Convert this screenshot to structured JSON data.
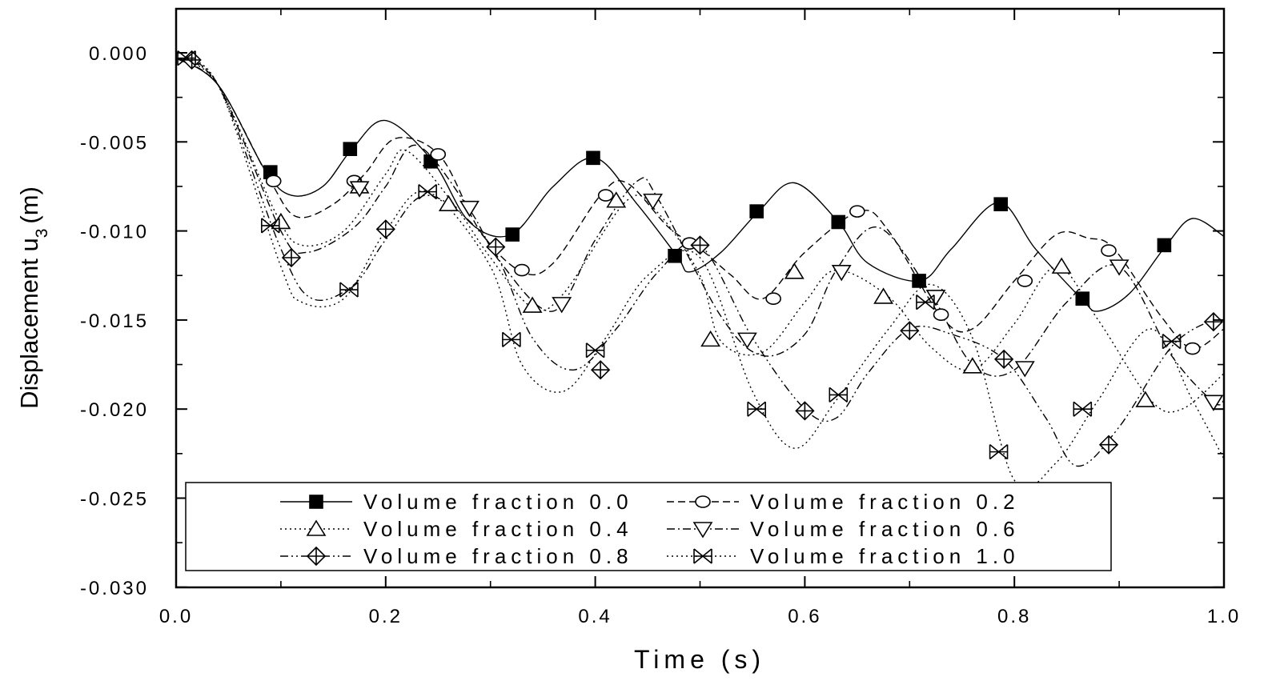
{
  "chart_data": {
    "type": "line",
    "xlabel": "Time (s)",
    "ylabel": "Displacement u",
    "ylabel_subscript": "3",
    "ylabel_unit": "(m)",
    "xlim": [
      0.0,
      1.0
    ],
    "ylim": [
      -0.03,
      0.0025
    ],
    "xticks": [
      0.0,
      0.2,
      0.4,
      0.6,
      0.8,
      1.0
    ],
    "xtick_labels": [
      "0.0",
      "0.2",
      "0.4",
      "0.6",
      "0.8",
      "1.0"
    ],
    "yticks": [
      0.0,
      -0.005,
      -0.01,
      -0.015,
      -0.02,
      -0.025,
      -0.03
    ],
    "ytick_labels": [
      "0.000",
      "-0.005",
      "-0.010",
      "-0.015",
      "-0.020",
      "-0.025",
      "-0.030"
    ],
    "grid": false,
    "legend_position": "bottom",
    "series": [
      {
        "name": "Volume fraction 0.0",
        "line_style": "solid",
        "marker": "filled-square",
        "points": [
          [
            0.0,
            -0.0003
          ],
          [
            0.04,
            -0.0018
          ],
          [
            0.085,
            -0.0066
          ],
          [
            0.11,
            -0.008
          ],
          [
            0.14,
            -0.0075
          ],
          [
            0.168,
            -0.0054
          ],
          [
            0.2,
            -0.0038
          ],
          [
            0.245,
            -0.0061
          ],
          [
            0.28,
            -0.0095
          ],
          [
            0.32,
            -0.0102
          ],
          [
            0.36,
            -0.0075
          ],
          [
            0.4,
            -0.0059
          ],
          [
            0.44,
            -0.0085
          ],
          [
            0.478,
            -0.0114
          ],
          [
            0.49,
            -0.0123
          ],
          [
            0.52,
            -0.0112
          ],
          [
            0.556,
            -0.0089
          ],
          [
            0.59,
            -0.0073
          ],
          [
            0.632,
            -0.0095
          ],
          [
            0.66,
            -0.0118
          ],
          [
            0.71,
            -0.0128
          ],
          [
            0.74,
            -0.011
          ],
          [
            0.785,
            -0.0084
          ],
          [
            0.82,
            -0.011
          ],
          [
            0.864,
            -0.0138
          ],
          [
            0.88,
            -0.0145
          ],
          [
            0.91,
            -0.0135
          ],
          [
            0.945,
            -0.0108
          ],
          [
            0.97,
            -0.0093
          ],
          [
            1.0,
            -0.0103
          ]
        ],
        "markers": [
          [
            0.09,
            -0.0067
          ],
          [
            0.166,
            -0.0054
          ],
          [
            0.243,
            -0.0061
          ],
          [
            0.321,
            -0.0102
          ],
          [
            0.398,
            -0.0059
          ],
          [
            0.476,
            -0.0114
          ],
          [
            0.554,
            -0.0089
          ],
          [
            0.632,
            -0.0095
          ],
          [
            0.709,
            -0.0128
          ],
          [
            0.787,
            -0.0085
          ],
          [
            0.865,
            -0.0138
          ],
          [
            0.943,
            -0.0108
          ]
        ]
      },
      {
        "name": "Volume fraction 0.2",
        "line_style": "dashed",
        "marker": "open-circle",
        "points": [
          [
            0.0,
            -0.0003
          ],
          [
            0.04,
            -0.0018
          ],
          [
            0.09,
            -0.0072
          ],
          [
            0.115,
            -0.0092
          ],
          [
            0.15,
            -0.0085
          ],
          [
            0.18,
            -0.0068
          ],
          [
            0.21,
            -0.0048
          ],
          [
            0.252,
            -0.0058
          ],
          [
            0.29,
            -0.01
          ],
          [
            0.33,
            -0.0123
          ],
          [
            0.36,
            -0.0118
          ],
          [
            0.405,
            -0.008
          ],
          [
            0.43,
            -0.0073
          ],
          [
            0.47,
            -0.0098
          ],
          [
            0.5,
            -0.011
          ],
          [
            0.53,
            -0.0125
          ],
          [
            0.56,
            -0.0138
          ],
          [
            0.6,
            -0.0112
          ],
          [
            0.652,
            -0.0089
          ],
          [
            0.68,
            -0.01
          ],
          [
            0.73,
            -0.0148
          ],
          [
            0.76,
            -0.0155
          ],
          [
            0.8,
            -0.0128
          ],
          [
            0.84,
            -0.0102
          ],
          [
            0.87,
            -0.0104
          ],
          [
            0.895,
            -0.011
          ],
          [
            0.94,
            -0.0148
          ],
          [
            0.97,
            -0.0166
          ],
          [
            1.0,
            -0.0155
          ]
        ],
        "markers": [
          [
            0.093,
            -0.0072
          ],
          [
            0.17,
            -0.0072
          ],
          [
            0.25,
            -0.0057
          ],
          [
            0.33,
            -0.0122
          ],
          [
            0.41,
            -0.008
          ],
          [
            0.49,
            -0.0107
          ],
          [
            0.57,
            -0.0138
          ],
          [
            0.65,
            -0.0089
          ],
          [
            0.73,
            -0.0147
          ],
          [
            0.81,
            -0.0128
          ],
          [
            0.89,
            -0.0111
          ],
          [
            0.97,
            -0.0166
          ]
        ]
      },
      {
        "name": "Volume fraction 0.4",
        "line_style": "dotted",
        "marker": "open-triangle-up",
        "points": [
          [
            0.0,
            -0.0003
          ],
          [
            0.04,
            -0.0018
          ],
          [
            0.095,
            -0.009
          ],
          [
            0.12,
            -0.0108
          ],
          [
            0.16,
            -0.01
          ],
          [
            0.2,
            -0.0068
          ],
          [
            0.22,
            -0.0055
          ],
          [
            0.265,
            -0.0085
          ],
          [
            0.3,
            -0.0115
          ],
          [
            0.34,
            -0.0143
          ],
          [
            0.37,
            -0.0135
          ],
          [
            0.43,
            -0.0083
          ],
          [
            0.46,
            -0.009
          ],
          [
            0.5,
            -0.0125
          ],
          [
            0.52,
            -0.0162
          ],
          [
            0.56,
            -0.0168
          ],
          [
            0.6,
            -0.014
          ],
          [
            0.63,
            -0.0122
          ],
          [
            0.68,
            -0.0137
          ],
          [
            0.72,
            -0.0165
          ],
          [
            0.76,
            -0.0178
          ],
          [
            0.8,
            -0.0152
          ],
          [
            0.84,
            -0.012
          ],
          [
            0.88,
            -0.015
          ],
          [
            0.93,
            -0.0195
          ],
          [
            0.96,
            -0.02
          ],
          [
            1.0,
            -0.018
          ]
        ],
        "markers": [
          [
            0.1,
            -0.0095
          ],
          [
            0.175,
            -0.0075
          ],
          [
            0.26,
            -0.0085
          ],
          [
            0.34,
            -0.0142
          ],
          [
            0.42,
            -0.0083
          ],
          [
            0.51,
            -0.0161
          ],
          [
            0.59,
            -0.0123
          ],
          [
            0.675,
            -0.0137
          ],
          [
            0.76,
            -0.0176
          ],
          [
            0.845,
            -0.012
          ],
          [
            0.925,
            -0.0195
          ]
        ]
      },
      {
        "name": "Volume fraction 0.6",
        "line_style": "dash-dot",
        "marker": "open-triangle-down",
        "points": [
          [
            0.0,
            -0.0003
          ],
          [
            0.04,
            -0.0018
          ],
          [
            0.1,
            -0.01
          ],
          [
            0.125,
            -0.0112
          ],
          [
            0.17,
            -0.0098
          ],
          [
            0.2,
            -0.0075
          ],
          [
            0.23,
            -0.0052
          ],
          [
            0.28,
            -0.0088
          ],
          [
            0.31,
            -0.0118
          ],
          [
            0.36,
            -0.0145
          ],
          [
            0.4,
            -0.0105
          ],
          [
            0.44,
            -0.0072
          ],
          [
            0.46,
            -0.0082
          ],
          [
            0.52,
            -0.0148
          ],
          [
            0.56,
            -0.017
          ],
          [
            0.6,
            -0.0158
          ],
          [
            0.63,
            -0.0122
          ],
          [
            0.67,
            -0.0098
          ],
          [
            0.72,
            -0.0135
          ],
          [
            0.76,
            -0.0175
          ],
          [
            0.8,
            -0.0178
          ],
          [
            0.85,
            -0.014
          ],
          [
            0.9,
            -0.012
          ],
          [
            0.95,
            -0.017
          ],
          [
            0.99,
            -0.0196
          ],
          [
            1.0,
            -0.0195
          ]
        ],
        "markers": [
          [
            0.175,
            -0.0076
          ],
          [
            0.28,
            -0.0087
          ],
          [
            0.368,
            -0.0141
          ],
          [
            0.455,
            -0.0083
          ],
          [
            0.545,
            -0.0161
          ],
          [
            0.635,
            -0.0123
          ],
          [
            0.725,
            -0.0137
          ],
          [
            0.81,
            -0.0177
          ],
          [
            0.9,
            -0.012
          ],
          [
            0.99,
            -0.0196
          ]
        ]
      },
      {
        "name": "Volume fraction 0.8",
        "line_style": "dash-dot-dot",
        "marker": "crossed-diamond",
        "points": [
          [
            0.0,
            -0.0003
          ],
          [
            0.04,
            -0.0018
          ],
          [
            0.1,
            -0.011
          ],
          [
            0.13,
            -0.0138
          ],
          [
            0.17,
            -0.013
          ],
          [
            0.2,
            -0.0105
          ],
          [
            0.24,
            -0.008
          ],
          [
            0.3,
            -0.0108
          ],
          [
            0.34,
            -0.016
          ],
          [
            0.38,
            -0.0178
          ],
          [
            0.42,
            -0.0155
          ],
          [
            0.46,
            -0.0123
          ],
          [
            0.5,
            -0.0108
          ],
          [
            0.55,
            -0.016
          ],
          [
            0.6,
            -0.02
          ],
          [
            0.63,
            -0.0205
          ],
          [
            0.66,
            -0.018
          ],
          [
            0.7,
            -0.0155
          ],
          [
            0.74,
            -0.0158
          ],
          [
            0.79,
            -0.0172
          ],
          [
            0.83,
            -0.0205
          ],
          [
            0.86,
            -0.0232
          ],
          [
            0.9,
            -0.021
          ],
          [
            0.95,
            -0.0165
          ],
          [
            0.99,
            -0.015
          ],
          [
            1.0,
            -0.0152
          ]
        ],
        "markers": [
          [
            0.015,
            -0.0004
          ],
          [
            0.11,
            -0.0115
          ],
          [
            0.2,
            -0.0099
          ],
          [
            0.305,
            -0.0109
          ],
          [
            0.405,
            -0.0178
          ],
          [
            0.5,
            -0.0108
          ],
          [
            0.6,
            -0.0201
          ],
          [
            0.7,
            -0.0156
          ],
          [
            0.79,
            -0.0172
          ],
          [
            0.89,
            -0.022
          ],
          [
            0.99,
            -0.0151
          ]
        ]
      },
      {
        "name": "Volume fraction 1.0",
        "line_style": "dotted",
        "marker": "crossed-x",
        "points": [
          [
            0.0,
            -0.0003
          ],
          [
            0.04,
            -0.0018
          ],
          [
            0.1,
            -0.012
          ],
          [
            0.12,
            -0.014
          ],
          [
            0.16,
            -0.0138
          ],
          [
            0.2,
            -0.01
          ],
          [
            0.24,
            -0.0078
          ],
          [
            0.3,
            -0.012
          ],
          [
            0.33,
            -0.0175
          ],
          [
            0.37,
            -0.019
          ],
          [
            0.41,
            -0.016
          ],
          [
            0.45,
            -0.0125
          ],
          [
            0.5,
            -0.0115
          ],
          [
            0.55,
            -0.019
          ],
          [
            0.59,
            -0.0222
          ],
          [
            0.63,
            -0.0195
          ],
          [
            0.68,
            -0.0155
          ],
          [
            0.72,
            -0.013
          ],
          [
            0.76,
            -0.016
          ],
          [
            0.8,
            -0.024
          ],
          [
            0.84,
            -0.023
          ],
          [
            0.88,
            -0.0195
          ],
          [
            0.93,
            -0.0155
          ],
          [
            0.97,
            -0.0195
          ],
          [
            1.0,
            -0.0228
          ]
        ],
        "markers": [
          [
            0.01,
            -0.0003
          ],
          [
            0.09,
            -0.0097
          ],
          [
            0.165,
            -0.0133
          ],
          [
            0.24,
            -0.0078
          ],
          [
            0.32,
            -0.0161
          ],
          [
            0.4,
            -0.0167
          ],
          [
            0.554,
            -0.02
          ],
          [
            0.632,
            -0.0192
          ],
          [
            0.715,
            -0.014
          ],
          [
            0.785,
            -0.0224
          ],
          [
            0.865,
            -0.02
          ],
          [
            0.95,
            -0.0162
          ]
        ]
      }
    ]
  }
}
